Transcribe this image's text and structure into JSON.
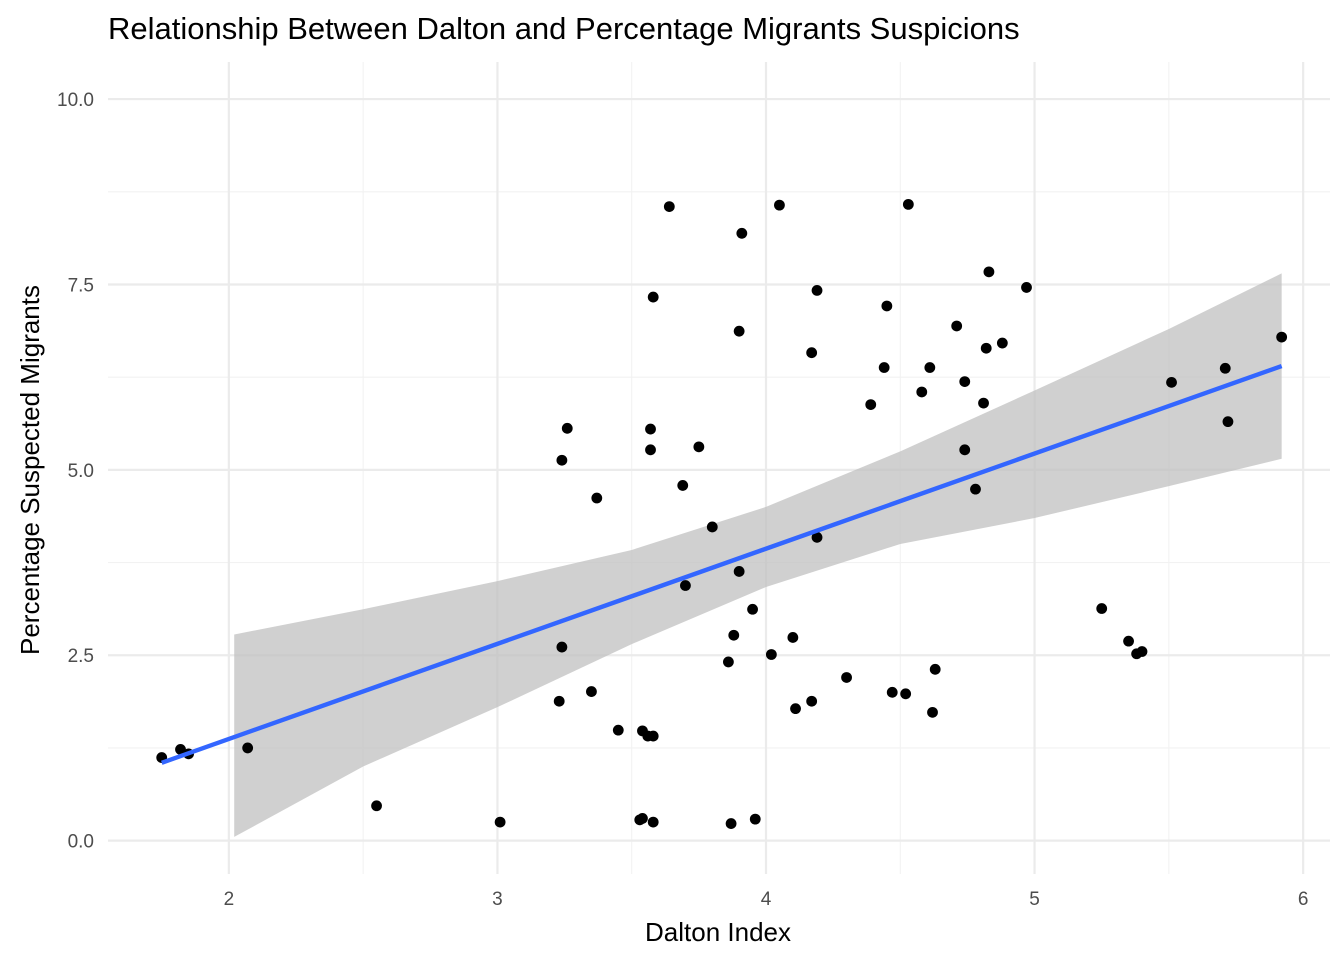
{
  "chart_data": {
    "type": "scatter",
    "title": "Relationship Between Dalton and Percentage Migrants Suspicions",
    "xlabel": "Dalton Index",
    "ylabel": "Percentage Suspected Migrants",
    "xlim": [
      1.55,
      6.1
    ],
    "ylim": [
      -0.45,
      10.5
    ],
    "x_ticks": [
      2,
      3,
      4,
      5,
      6
    ],
    "x_tick_labels": [
      "2",
      "3",
      "4",
      "5",
      "6"
    ],
    "y_ticks": [
      0,
      2.5,
      5,
      7.5,
      10
    ],
    "y_tick_labels": [
      "0.0",
      "2.5",
      "5.0",
      "7.5",
      "10.0"
    ],
    "x_minor": [
      2.5,
      3.5,
      4.5,
      5.5
    ],
    "y_minor": [
      1.25,
      3.75,
      6.25,
      8.75
    ],
    "grid": true,
    "legend": "none",
    "colors": {
      "points": "#000000",
      "fit_line": "#3366ff",
      "confidence_band": "#bebebe"
    },
    "points": [
      {
        "x": 1.75,
        "y": 1.12
      },
      {
        "x": 1.82,
        "y": 1.23
      },
      {
        "x": 1.85,
        "y": 1.17
      },
      {
        "x": 2.07,
        "y": 1.25
      },
      {
        "x": 2.55,
        "y": 0.47
      },
      {
        "x": 3.01,
        "y": 0.25
      },
      {
        "x": 3.23,
        "y": 1.88
      },
      {
        "x": 3.24,
        "y": 5.13
      },
      {
        "x": 3.24,
        "y": 2.61
      },
      {
        "x": 3.26,
        "y": 5.56
      },
      {
        "x": 3.35,
        "y": 2.01
      },
      {
        "x": 3.37,
        "y": 4.62
      },
      {
        "x": 3.45,
        "y": 1.49
      },
      {
        "x": 3.53,
        "y": 0.28
      },
      {
        "x": 3.54,
        "y": 0.3
      },
      {
        "x": 3.54,
        "y": 1.48
      },
      {
        "x": 3.56,
        "y": 1.41
      },
      {
        "x": 3.57,
        "y": 5.55
      },
      {
        "x": 3.57,
        "y": 5.27
      },
      {
        "x": 3.58,
        "y": 0.25
      },
      {
        "x": 3.58,
        "y": 1.41
      },
      {
        "x": 3.58,
        "y": 7.33
      },
      {
        "x": 3.64,
        "y": 8.55
      },
      {
        "x": 3.69,
        "y": 4.79
      },
      {
        "x": 3.7,
        "y": 3.44
      },
      {
        "x": 3.75,
        "y": 5.31
      },
      {
        "x": 3.8,
        "y": 4.23
      },
      {
        "x": 3.86,
        "y": 2.41
      },
      {
        "x": 3.87,
        "y": 0.23
      },
      {
        "x": 3.88,
        "y": 2.77
      },
      {
        "x": 3.9,
        "y": 3.63
      },
      {
        "x": 3.9,
        "y": 6.87
      },
      {
        "x": 3.91,
        "y": 8.19
      },
      {
        "x": 3.95,
        "y": 3.12
      },
      {
        "x": 3.96,
        "y": 0.29
      },
      {
        "x": 4.02,
        "y": 2.51
      },
      {
        "x": 4.05,
        "y": 8.57
      },
      {
        "x": 4.1,
        "y": 2.74
      },
      {
        "x": 4.11,
        "y": 1.78
      },
      {
        "x": 4.17,
        "y": 1.88
      },
      {
        "x": 4.17,
        "y": 6.58
      },
      {
        "x": 4.19,
        "y": 7.42
      },
      {
        "x": 4.19,
        "y": 4.09
      },
      {
        "x": 4.3,
        "y": 2.2
      },
      {
        "x": 4.39,
        "y": 5.88
      },
      {
        "x": 4.44,
        "y": 6.38
      },
      {
        "x": 4.45,
        "y": 7.21
      },
      {
        "x": 4.47,
        "y": 2.0
      },
      {
        "x": 4.52,
        "y": 1.98
      },
      {
        "x": 4.53,
        "y": 8.58
      },
      {
        "x": 4.58,
        "y": 6.05
      },
      {
        "x": 4.61,
        "y": 6.38
      },
      {
        "x": 4.62,
        "y": 1.73
      },
      {
        "x": 4.63,
        "y": 2.31
      },
      {
        "x": 4.71,
        "y": 6.94
      },
      {
        "x": 4.74,
        "y": 5.27
      },
      {
        "x": 4.74,
        "y": 6.19
      },
      {
        "x": 4.78,
        "y": 4.74
      },
      {
        "x": 4.81,
        "y": 5.9
      },
      {
        "x": 4.82,
        "y": 6.64
      },
      {
        "x": 4.83,
        "y": 7.67
      },
      {
        "x": 4.88,
        "y": 6.71
      },
      {
        "x": 4.97,
        "y": 7.46
      },
      {
        "x": 5.25,
        "y": 3.13
      },
      {
        "x": 5.35,
        "y": 2.69
      },
      {
        "x": 5.38,
        "y": 2.52
      },
      {
        "x": 5.4,
        "y": 2.55
      },
      {
        "x": 5.51,
        "y": 6.18
      },
      {
        "x": 5.71,
        "y": 6.37
      },
      {
        "x": 5.72,
        "y": 5.65
      },
      {
        "x": 5.92,
        "y": 6.79
      }
    ],
    "fit_line": {
      "x": [
        1.75,
        5.92
      ],
      "y": [
        1.05,
        6.4
      ]
    },
    "confidence_band": {
      "x": [
        1.75,
        2.02,
        2.5,
        3.0,
        3.5,
        4.0,
        4.5,
        5.0,
        5.5,
        5.92
      ],
      "upper": [
        null,
        2.78,
        3.12,
        3.5,
        3.92,
        4.5,
        5.25,
        6.07,
        6.9,
        7.65
      ],
      "lower": [
        null,
        0.05,
        1.0,
        1.8,
        2.65,
        3.42,
        4.0,
        4.35,
        4.78,
        5.15
      ]
    }
  }
}
